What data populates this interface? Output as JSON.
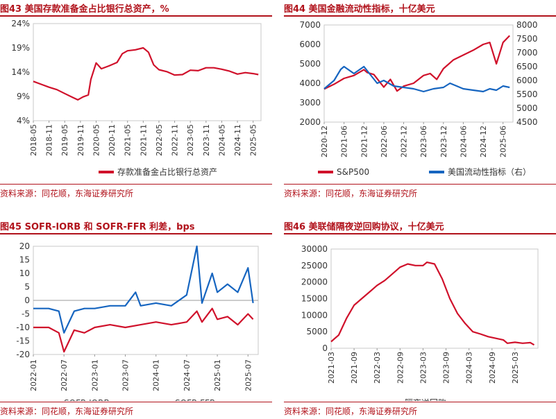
{
  "charts": [
    {
      "title": "图43  美国存款准备金占比银行总资产，%",
      "source": "资料来源：同花顺，东海证券研究所"
    },
    {
      "title": "图44  美国金融流动性指标，十亿美元",
      "source": "资料来源：同花顺，东海证券研究所"
    },
    {
      "title": "图45  SOFR-IORB 和 SOFR-FFR 利差，bps",
      "source": "资料来源：同花顺，东海证券研究所"
    },
    {
      "title": "图46  美联储隔夜逆回购协议，十亿美元",
      "source": "资料来源：同花顺，东海证券研究所"
    }
  ],
  "chart_data": [
    {
      "type": "line",
      "ylim": [
        4,
        24
      ],
      "yticks": [
        "4%",
        "9%",
        "14%",
        "19%",
        "24%"
      ],
      "ytick_values": [
        4,
        9,
        14,
        19,
        24
      ],
      "xticks": [
        "2018-05",
        "2018-11",
        "2019-05",
        "2019-11",
        "2020-05",
        "2020-11",
        "2021-05",
        "2021-11",
        "2022-05",
        "2022-11",
        "2023-05",
        "2023-11",
        "2024-05",
        "2024-11",
        "2025-05"
      ],
      "xtick_dates": [
        "2018-05",
        "2018-11",
        "2019-05",
        "2019-11",
        "2020-05",
        "2020-11",
        "2021-05",
        "2021-11",
        "2022-05",
        "2022-11",
        "2023-05",
        "2023-11",
        "2024-05",
        "2024-11",
        "2025-05"
      ],
      "xlim": [
        "2018-05",
        "2025-08"
      ],
      "grid": false,
      "legend_position": "bottom",
      "colors": {
        "series": "#d0112b"
      },
      "series": [
        {
          "name": "存款准备金占比银行总资产",
          "points": [
            [
              "2018-05",
              12.1
            ],
            [
              "2018-08",
              11.5
            ],
            [
              "2018-11",
              10.9
            ],
            [
              "2019-02",
              10.4
            ],
            [
              "2019-05",
              9.6
            ],
            [
              "2019-08",
              8.8
            ],
            [
              "2019-10",
              8.3
            ],
            [
              "2019-12",
              8.9
            ],
            [
              "2020-02",
              9.3
            ],
            [
              "2020-03",
              12.5
            ],
            [
              "2020-05",
              15.9
            ],
            [
              "2020-07",
              14.7
            ],
            [
              "2020-10",
              15.3
            ],
            [
              "2021-01",
              16.0
            ],
            [
              "2021-03",
              17.8
            ],
            [
              "2021-05",
              18.4
            ],
            [
              "2021-08",
              18.6
            ],
            [
              "2021-11",
              19.0
            ],
            [
              "2022-01",
              18.1
            ],
            [
              "2022-03",
              15.5
            ],
            [
              "2022-05",
              14.5
            ],
            [
              "2022-08",
              14.1
            ],
            [
              "2022-11",
              13.4
            ],
            [
              "2023-02",
              13.5
            ],
            [
              "2023-05",
              14.4
            ],
            [
              "2023-08",
              14.3
            ],
            [
              "2023-11",
              14.9
            ],
            [
              "2024-02",
              14.9
            ],
            [
              "2024-05",
              14.6
            ],
            [
              "2024-08",
              14.2
            ],
            [
              "2024-11",
              13.6
            ],
            [
              "2025-02",
              13.9
            ],
            [
              "2025-05",
              13.7
            ],
            [
              "2025-07",
              13.5
            ]
          ]
        }
      ]
    },
    {
      "type": "line",
      "ylim": [
        2000,
        7000
      ],
      "yticks": [
        "2000",
        "3000",
        "4000",
        "5000",
        "6000",
        "7000"
      ],
      "ytick_values": [
        2000,
        3000,
        4000,
        5000,
        6000,
        7000
      ],
      "y2lim": [
        4500,
        8000
      ],
      "y2ticks": [
        "4500",
        "5000",
        "5500",
        "6000",
        "6500",
        "7000",
        "7500",
        "8000"
      ],
      "y2tick_values": [
        4500,
        5000,
        5500,
        6000,
        6500,
        7000,
        7500,
        8000
      ],
      "xticks": [
        "2020-12",
        "2021-06",
        "2021-12",
        "2022-06",
        "2022-12",
        "2023-06",
        "2023-12",
        "2024-06",
        "2024-12",
        "2025-06"
      ],
      "xtick_dates": [
        "2020-12",
        "2021-06",
        "2021-12",
        "2022-06",
        "2022-12",
        "2023-06",
        "2023-12",
        "2024-06",
        "2024-12",
        "2025-06"
      ],
      "xlim": [
        "2020-12",
        "2025-09"
      ],
      "grid": false,
      "legend_position": "bottom",
      "colors": {
        "sp500": "#d0112b",
        "liquidity": "#1665c0"
      },
      "series": [
        {
          "name": "S&P500",
          "axis": "left",
          "points": [
            [
              "2020-12",
              3700
            ],
            [
              "2021-03",
              3950
            ],
            [
              "2021-06",
              4250
            ],
            [
              "2021-09",
              4400
            ],
            [
              "2021-12",
              4700
            ],
            [
              "2022-01",
              4550
            ],
            [
              "2022-03",
              4450
            ],
            [
              "2022-06",
              3800
            ],
            [
              "2022-08",
              4200
            ],
            [
              "2022-10",
              3600
            ],
            [
              "2022-12",
              3850
            ],
            [
              "2023-03",
              4000
            ],
            [
              "2023-06",
              4400
            ],
            [
              "2023-08",
              4500
            ],
            [
              "2023-10",
              4200
            ],
            [
              "2023-12",
              4750
            ],
            [
              "2024-03",
              5200
            ],
            [
              "2024-06",
              5450
            ],
            [
              "2024-09",
              5700
            ],
            [
              "2024-12",
              6000
            ],
            [
              "2025-02",
              6100
            ],
            [
              "2025-04",
              5000
            ],
            [
              "2025-06",
              6100
            ],
            [
              "2025-08",
              6450
            ]
          ]
        },
        {
          "name": "美国流动性指标（右）",
          "axis": "right",
          "points": [
            [
              "2020-12",
              5700
            ],
            [
              "2021-03",
              6000
            ],
            [
              "2021-05",
              6400
            ],
            [
              "2021-06",
              6500
            ],
            [
              "2021-09",
              6250
            ],
            [
              "2021-12",
              6500
            ],
            [
              "2022-02",
              6200
            ],
            [
              "2022-04",
              5900
            ],
            [
              "2022-06",
              6000
            ],
            [
              "2022-09",
              5800
            ],
            [
              "2022-12",
              5750
            ],
            [
              "2023-03",
              5700
            ],
            [
              "2023-06",
              5600
            ],
            [
              "2023-09",
              5700
            ],
            [
              "2023-12",
              5750
            ],
            [
              "2024-02",
              5900
            ],
            [
              "2024-04",
              5800
            ],
            [
              "2024-06",
              5700
            ],
            [
              "2024-09",
              5650
            ],
            [
              "2024-12",
              5600
            ],
            [
              "2025-02",
              5700
            ],
            [
              "2025-04",
              5650
            ],
            [
              "2025-06",
              5800
            ],
            [
              "2025-08",
              5750
            ]
          ]
        }
      ]
    },
    {
      "type": "line",
      "ylim": [
        -20,
        20
      ],
      "yticks": [
        "-20",
        "-15",
        "-10",
        "-5",
        "0",
        "5",
        "10",
        "15",
        "20"
      ],
      "ytick_values": [
        -20,
        -15,
        -10,
        -5,
        0,
        5,
        10,
        15,
        20
      ],
      "xticks": [
        "2022-01",
        "2022-07",
        "2023-01",
        "2023-07",
        "2024-01",
        "2024-07",
        "2025-01",
        "2025-07"
      ],
      "xtick_dates": [
        "2022-01",
        "2022-07",
        "2023-01",
        "2023-07",
        "2024-01",
        "2024-07",
        "2025-01",
        "2025-07"
      ],
      "xlim": [
        "2022-01",
        "2025-09"
      ],
      "grid": false,
      "zero_line": true,
      "legend_position": "bottom",
      "colors": {
        "iorb": "#d0112b",
        "ffr": "#1665c0"
      },
      "series": [
        {
          "name": "SOFR-IORB",
          "points": [
            [
              "2022-01",
              -10
            ],
            [
              "2022-04",
              -10
            ],
            [
              "2022-06",
              -12
            ],
            [
              "2022-07",
              -19
            ],
            [
              "2022-09",
              -11
            ],
            [
              "2022-11",
              -12
            ],
            [
              "2023-01",
              -10
            ],
            [
              "2023-04",
              -9
            ],
            [
              "2023-07",
              -10
            ],
            [
              "2023-10",
              -9
            ],
            [
              "2024-01",
              -8
            ],
            [
              "2024-04",
              -9
            ],
            [
              "2024-07",
              -8
            ],
            [
              "2024-09",
              -4
            ],
            [
              "2024-10",
              -8
            ],
            [
              "2024-12",
              -3
            ],
            [
              "2025-01",
              -7
            ],
            [
              "2025-03",
              -6
            ],
            [
              "2025-05",
              -9
            ],
            [
              "2025-07",
              -5
            ],
            [
              "2025-08",
              -7
            ]
          ]
        },
        {
          "name": "SOFR-FFR",
          "points": [
            [
              "2022-01",
              -3
            ],
            [
              "2022-04",
              -3
            ],
            [
              "2022-06",
              -4
            ],
            [
              "2022-07",
              -12
            ],
            [
              "2022-09",
              -4
            ],
            [
              "2022-11",
              -3
            ],
            [
              "2023-01",
              -3
            ],
            [
              "2023-04",
              -2
            ],
            [
              "2023-07",
              -2
            ],
            [
              "2023-09",
              3
            ],
            [
              "2023-10",
              -2
            ],
            [
              "2024-01",
              -1
            ],
            [
              "2024-04",
              -2
            ],
            [
              "2024-07",
              2
            ],
            [
              "2024-09",
              20
            ],
            [
              "2024-10",
              -1
            ],
            [
              "2024-12",
              10
            ],
            [
              "2025-01",
              3
            ],
            [
              "2025-03",
              6
            ],
            [
              "2025-05",
              3
            ],
            [
              "2025-07",
              12
            ],
            [
              "2025-08",
              -1
            ]
          ]
        }
      ]
    },
    {
      "type": "line",
      "ylim": [
        0,
        30000
      ],
      "yticks": [
        "0",
        "5000",
        "10000",
        "15000",
        "20000",
        "25000",
        "30000"
      ],
      "ytick_values": [
        0,
        5000,
        10000,
        15000,
        20000,
        25000,
        30000
      ],
      "xticks": [
        "2021-03",
        "2021-09",
        "2022-03",
        "2022-09",
        "2023-03",
        "2023-09",
        "2024-03",
        "2024-09",
        "2025-03"
      ],
      "xtick_dates": [
        "2021-03",
        "2021-09",
        "2022-03",
        "2022-09",
        "2023-03",
        "2023-09",
        "2024-03",
        "2024-09",
        "2025-03"
      ],
      "xlim": [
        "2021-03",
        "2025-09"
      ],
      "grid": false,
      "legend_position": "bottom",
      "colors": {
        "series": "#d0112b"
      },
      "series": [
        {
          "name": "隔夜逆回购",
          "points": [
            [
              "2021-03",
              2000
            ],
            [
              "2021-05",
              4000
            ],
            [
              "2021-07",
              9000
            ],
            [
              "2021-09",
              13000
            ],
            [
              "2021-11",
              15000
            ],
            [
              "2022-01",
              17000
            ],
            [
              "2022-03",
              19000
            ],
            [
              "2022-05",
              20500
            ],
            [
              "2022-07",
              22500
            ],
            [
              "2022-09",
              24500
            ],
            [
              "2022-11",
              25500
            ],
            [
              "2023-01",
              25000
            ],
            [
              "2023-03",
              25000
            ],
            [
              "2023-04",
              26000
            ],
            [
              "2023-06",
              25500
            ],
            [
              "2023-08",
              21000
            ],
            [
              "2023-10",
              15000
            ],
            [
              "2023-12",
              10500
            ],
            [
              "2024-02",
              7500
            ],
            [
              "2024-04",
              5000
            ],
            [
              "2024-06",
              4300
            ],
            [
              "2024-08",
              3500
            ],
            [
              "2024-10",
              3000
            ],
            [
              "2024-12",
              2500
            ],
            [
              "2025-01",
              1500
            ],
            [
              "2025-03",
              1800
            ],
            [
              "2025-05",
              1500
            ],
            [
              "2025-07",
              1700
            ],
            [
              "2025-08",
              1000
            ]
          ]
        }
      ]
    }
  ]
}
